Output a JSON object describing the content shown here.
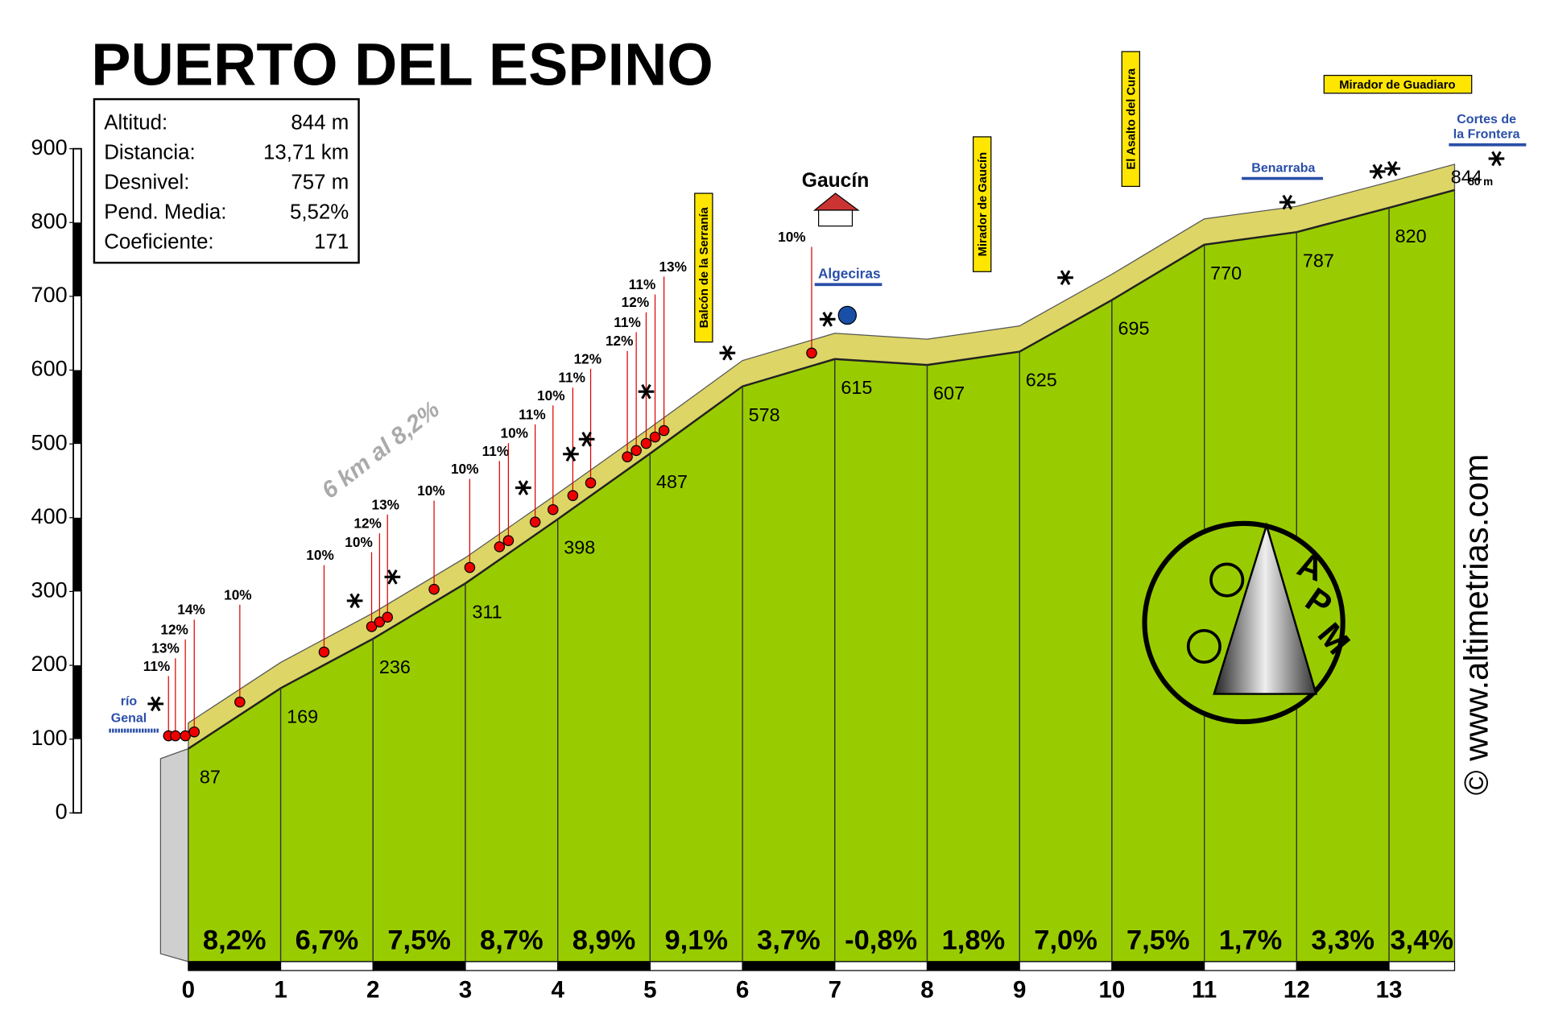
{
  "chart_data": {
    "type": "profile",
    "title": "PUERTO DEL ESPINO",
    "x": [
      0,
      1,
      2,
      3,
      4,
      5,
      6,
      7,
      8,
      9,
      10,
      11,
      12,
      13,
      13.71
    ],
    "values": [
      87,
      169,
      236,
      311,
      398,
      487,
      578,
      615,
      607,
      625,
      695,
      770,
      787,
      820,
      844
    ],
    "xlim": [
      0,
      13.71
    ],
    "xticks": [
      0,
      1,
      2,
      3,
      4,
      5,
      6,
      7,
      8,
      9,
      10,
      11,
      12,
      13
    ],
    "ylim": [
      0,
      900
    ],
    "yticks": [
      0,
      100,
      200,
      300,
      400,
      500,
      600,
      700,
      800,
      900
    ],
    "color": "#99cc00",
    "band_color": "#ddd566",
    "segments": {
      "values": [
        8.2,
        6.7,
        7.5,
        8.7,
        8.9,
        9.1,
        3.7,
        -0.8,
        1.8,
        7.0,
        7.5,
        1.7,
        3.3,
        3.4
      ],
      "value_labels": [
        "8,2%",
        "6,7%",
        "7,5%",
        "8,7%",
        "8,9%",
        "9,1%",
        "3,7%",
        "-0,8%",
        "1,8%",
        "7,0%",
        "7,5%",
        "1,7%",
        "3,3%",
        "3,4%"
      ]
    },
    "info": [
      {
        "label": "Altitud:",
        "value": "844 m"
      },
      {
        "label": "Distancia:",
        "value": "13,71 km"
      },
      {
        "label": "Desnivel:",
        "value": "757 m"
      },
      {
        "label": "Pend. Media:",
        "value": "5,52%"
      },
      {
        "label": "Coeficiente:",
        "value": "171"
      }
    ],
    "callouts": [
      "11%",
      "13%",
      "12%",
      "14%",
      "10%",
      "10%",
      "10%",
      "12%",
      "13%",
      "10%",
      "10%",
      "11%",
      "10%",
      "11%",
      "10%",
      "11%",
      "12%",
      "12%",
      "11%",
      "12%",
      "11%",
      "13%",
      "10%"
    ],
    "places": {
      "gaucin": "Gaucín",
      "algeciras": "Algeciras",
      "balcon": "Balcón de la Serranía",
      "mirador_gaucin": "Mirador de Gaucín",
      "asalto": "El Asalto del Cura",
      "mirador_guadiaro": "Mirador de Guadiaro",
      "benarraba": "Benarraba",
      "cortes": [
        "Cortes de",
        "la Frontera"
      ],
      "rio": [
        "río",
        "Genal"
      ]
    },
    "height_note": "50 m",
    "section_note": "6 km al 8,2%",
    "credit": "© www.altimetrias.com",
    "logo": [
      "A",
      "P",
      "M"
    ]
  }
}
